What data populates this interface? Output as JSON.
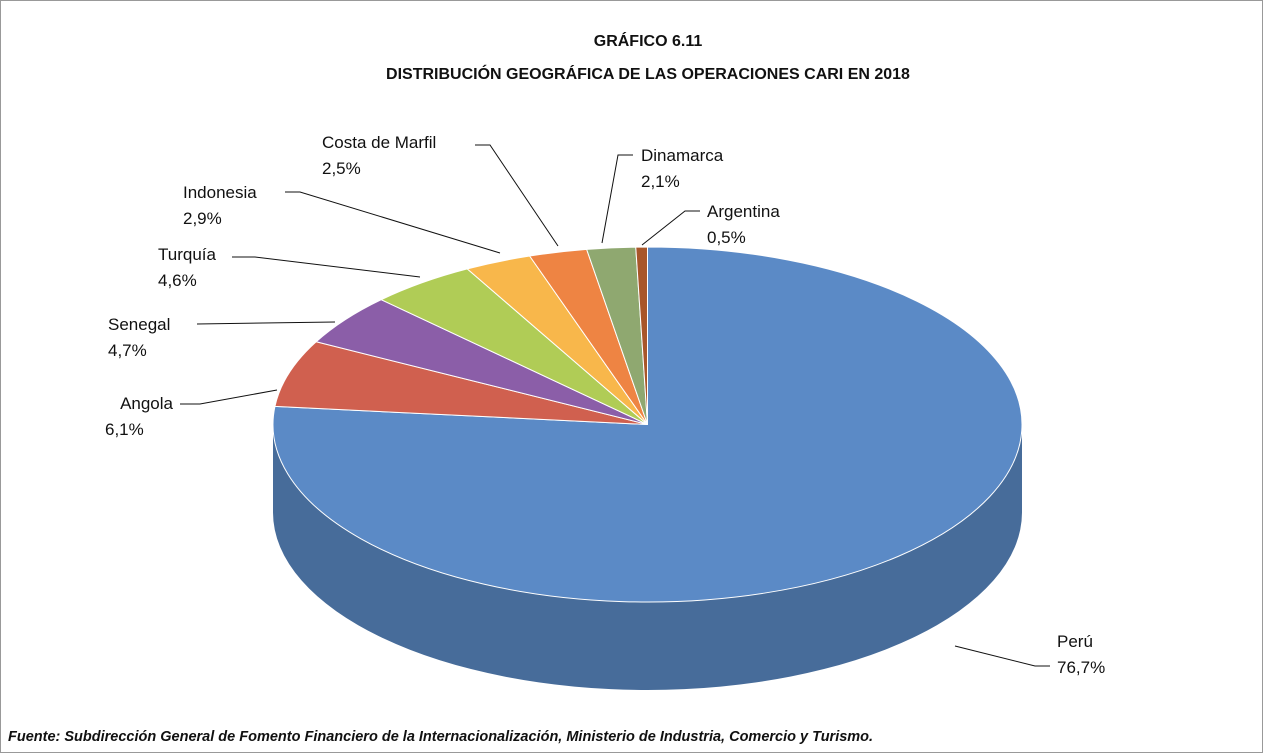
{
  "chart_data": {
    "type": "pie3d",
    "title": "GRÁFICO 6.11",
    "subtitle": "DISTRIBUCIÓN GEOGRÁFICA DE LAS OPERACIONES CARI EN 2018",
    "categories": [
      "Perú",
      "Angola",
      "Senegal",
      "Turquía",
      "Indonesia",
      "Costa de Marfil",
      "Dinamarca",
      "Argentina"
    ],
    "values": [
      76.7,
      6.1,
      4.7,
      4.6,
      2.9,
      2.5,
      2.1,
      0.5
    ],
    "value_labels": [
      "76,7%",
      "6,1%",
      "4,7%",
      "4,6%",
      "2,9%",
      "2,5%",
      "2,1%",
      "0,5%"
    ],
    "colors": [
      "#5b8ac6",
      "#d0604f",
      "#8b5ea8",
      "#b0cc56",
      "#f8b74b",
      "#ee8443",
      "#8fa870",
      "#a8562a"
    ],
    "source": "Fuente: Subdirección General de Fomento Financiero de la Internacionalización, Ministerio de Industria, Comercio y Turismo."
  }
}
